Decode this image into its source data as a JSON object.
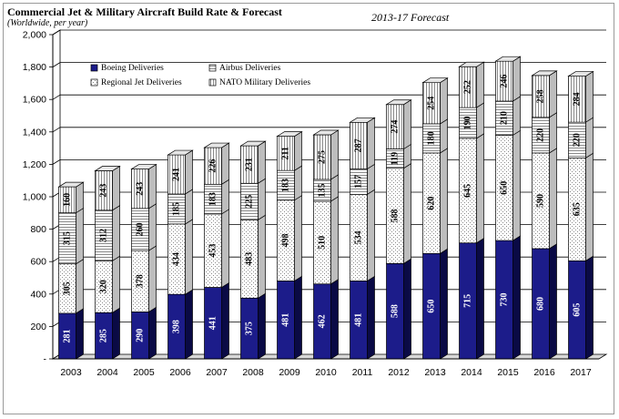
{
  "chart_data": {
    "type": "bar",
    "stacked": true,
    "title": "Commercial Jet & Military Aircraft Build Rate & Forecast",
    "subtitle": "(Worldwide, per year)",
    "annotation": "2013-17 Forecast",
    "categories": [
      "2003",
      "2004",
      "2005",
      "2006",
      "2007",
      "2008",
      "2009",
      "2010",
      "2011",
      "2012",
      "2013",
      "2014",
      "2015",
      "2016",
      "2017"
    ],
    "ylim": [
      0,
      2000
    ],
    "yticks": [
      "-",
      "200",
      "400",
      "600",
      "800",
      "1,000",
      "1,200",
      "1,400",
      "1,600",
      "1,800",
      "2,000"
    ],
    "legend_position": "top-left",
    "series": [
      {
        "name": "Boeing Deliveries",
        "color": "#1c1c8a",
        "values": [
          281,
          285,
          290,
          398,
          441,
          375,
          481,
          462,
          481,
          588,
          650,
          715,
          730,
          680,
          605
        ]
      },
      {
        "name": "Regional Jet Deliveries",
        "color": "#ffffff",
        "values": [
          305,
          320,
          378,
          434,
          453,
          483,
          498,
          510,
          534,
          588,
          620,
          645,
          650,
          590,
          635
        ]
      },
      {
        "name": "Airbus Deliveries",
        "color": "#ffffff",
        "values": [
          315,
          312,
          260,
          185,
          183,
          225,
          183,
          135,
          157,
          119,
          180,
          190,
          210,
          220,
          220
        ]
      },
      {
        "name": "NATO Military Deliveries",
        "color": "#ffffff",
        "values": [
          160,
          243,
          243,
          241,
          226,
          231,
          211,
          275,
          287,
          274,
          254,
          252,
          246,
          258,
          284
        ]
      }
    ]
  }
}
